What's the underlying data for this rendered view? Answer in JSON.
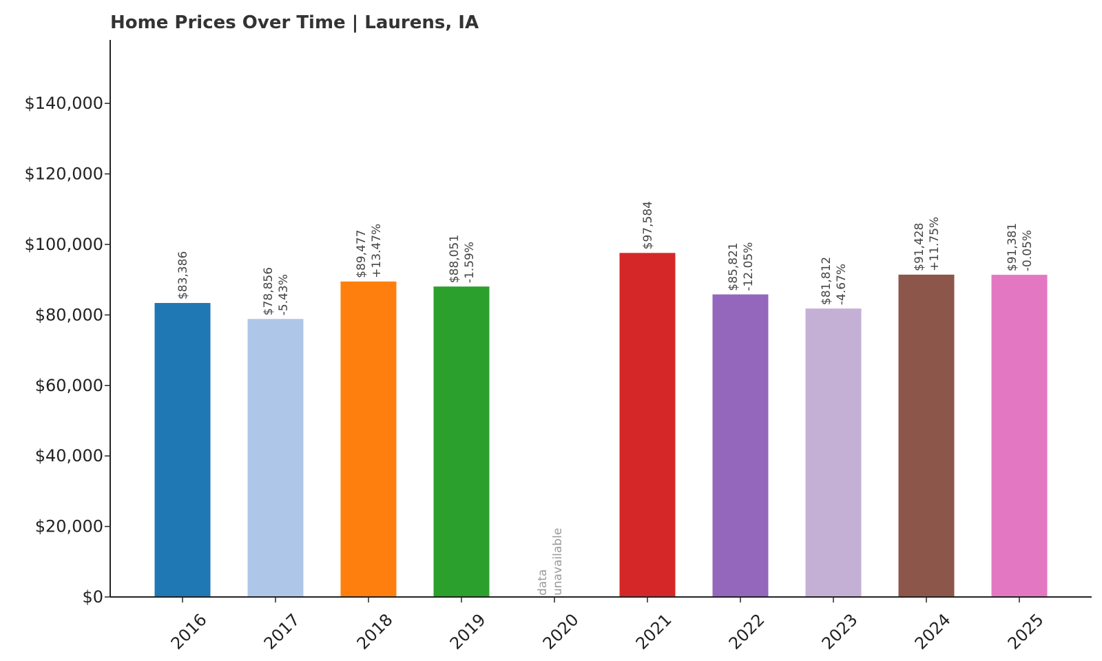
{
  "chart_data": {
    "type": "bar",
    "title": "Home Prices Over Time | Laurens, IA",
    "xlabel": "",
    "ylabel": "",
    "ylim": [
      0,
      158000
    ],
    "yticks": [
      0,
      20000,
      40000,
      60000,
      80000,
      100000,
      120000,
      140000
    ],
    "ytick_labels": [
      "$0",
      "$20,000",
      "$40,000",
      "$60,000",
      "$80,000",
      "$100,000",
      "$120,000",
      "$140,000"
    ],
    "grid": false,
    "legend": "none",
    "categories": [
      "2016",
      "2017",
      "2018",
      "2019",
      "2020",
      "2021",
      "2022",
      "2023",
      "2024",
      "2025"
    ],
    "values": [
      83386,
      78856,
      89477,
      88051,
      null,
      97584,
      85821,
      81812,
      91428,
      91381
    ],
    "value_labels": [
      "$83,386",
      "$78,856",
      "$89,477",
      "$88,051",
      "",
      "$97,584",
      "$85,821",
      "$81,812",
      "$91,428",
      "$91,381"
    ],
    "change_labels": [
      "",
      "-5.43%",
      "+13.47%",
      "-1.59%",
      "",
      "",
      "-12.05%",
      "-4.67%",
      "+11.75%",
      "-0.05%"
    ],
    "missing_label": [
      "data",
      "unavailable"
    ],
    "colors": [
      "#1f77b4",
      "#aec7e8",
      "#ff7f0e",
      "#2ca02c",
      "#cccccc",
      "#d62728",
      "#9467bd",
      "#c5b0d5",
      "#8c564b",
      "#e377c2"
    ]
  }
}
